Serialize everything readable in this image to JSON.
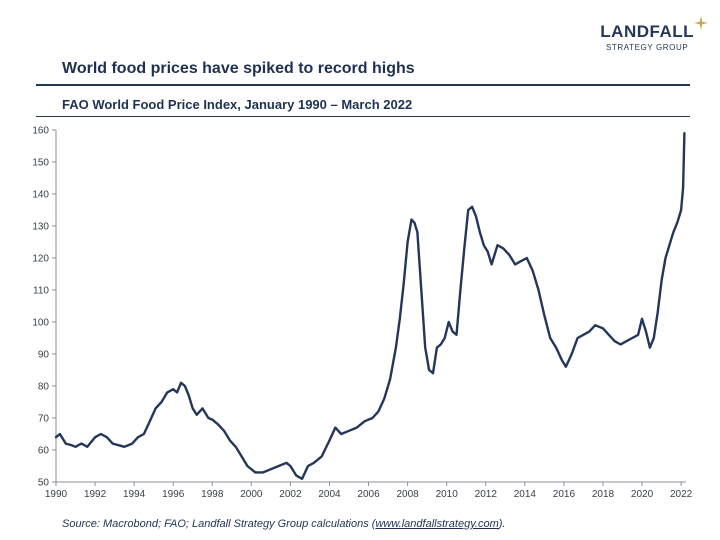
{
  "logo": {
    "brand": "LANDFALL",
    "sub": "STRATEGY GROUP"
  },
  "title": "World food prices have spiked to record highs",
  "chart_data": {
    "type": "line",
    "title": "FAO World Food Price Index, January 1990 – March 2022",
    "xlabel": "",
    "ylabel": "",
    "xlim": [
      1990,
      2022.25
    ],
    "ylim": [
      50,
      160
    ],
    "yticks": [
      50,
      60,
      70,
      80,
      90,
      100,
      110,
      120,
      130,
      140,
      150,
      160
    ],
    "xticks": [
      1990,
      1992,
      1994,
      1996,
      1998,
      2000,
      2002,
      2004,
      2006,
      2008,
      2010,
      2012,
      2014,
      2016,
      2018,
      2020,
      2022
    ],
    "grid": false,
    "series": [
      {
        "name": "FAO World Food Price Index",
        "color": "#24375a",
        "x": [
          1990.0,
          1990.2,
          1990.5,
          1990.8,
          1991.0,
          1991.3,
          1991.6,
          1992.0,
          1992.3,
          1992.6,
          1992.9,
          1993.2,
          1993.5,
          1993.9,
          1994.2,
          1994.5,
          1994.8,
          1995.1,
          1995.4,
          1995.7,
          1996.0,
          1996.2,
          1996.4,
          1996.6,
          1996.8,
          1997.0,
          1997.2,
          1997.5,
          1997.8,
          1998.0,
          1998.3,
          1998.6,
          1998.9,
          1999.2,
          1999.5,
          1999.8,
          2000.2,
          2000.6,
          2001.0,
          2001.4,
          2001.8,
          2002.0,
          2002.3,
          2002.6,
          2002.9,
          2003.2,
          2003.6,
          2004.0,
          2004.3,
          2004.6,
          2005.0,
          2005.4,
          2005.8,
          2006.2,
          2006.5,
          2006.8,
          2007.1,
          2007.4,
          2007.6,
          2007.8,
          2008.0,
          2008.2,
          2008.35,
          2008.5,
          2008.7,
          2008.9,
          2009.1,
          2009.3,
          2009.5,
          2009.7,
          2009.9,
          2010.1,
          2010.3,
          2010.5,
          2010.7,
          2010.9,
          2011.1,
          2011.3,
          2011.5,
          2011.7,
          2011.9,
          2012.1,
          2012.3,
          2012.6,
          2012.9,
          2013.2,
          2013.5,
          2013.8,
          2014.1,
          2014.4,
          2014.7,
          2015.0,
          2015.3,
          2015.6,
          2015.9,
          2016.1,
          2016.4,
          2016.7,
          2017.0,
          2017.3,
          2017.6,
          2018.0,
          2018.3,
          2018.6,
          2018.9,
          2019.2,
          2019.5,
          2019.8,
          2020.0,
          2020.2,
          2020.4,
          2020.6,
          2020.8,
          2021.0,
          2021.2,
          2021.4,
          2021.6,
          2021.8,
          2021.9,
          2022.0,
          2022.1,
          2022.17
        ],
        "values": [
          64,
          65,
          62,
          61.5,
          61,
          62,
          61,
          64,
          65,
          64,
          62,
          61.5,
          61,
          62,
          64,
          65,
          69,
          73,
          75,
          78,
          79,
          78,
          81,
          80,
          77,
          73,
          71,
          73,
          70,
          69.5,
          68,
          66,
          63,
          61,
          58,
          55,
          53,
          53,
          54,
          55,
          56,
          55,
          52,
          51,
          55,
          56,
          58,
          63,
          67,
          65,
          66,
          67,
          69,
          70,
          72,
          76,
          82,
          92,
          101,
          112,
          125,
          132,
          131,
          128,
          110,
          92,
          85,
          84,
          92,
          93,
          95,
          100,
          97,
          96,
          110,
          123,
          135,
          136,
          133,
          128,
          124,
          122,
          118,
          124,
          123,
          121,
          118,
          119,
          120,
          116,
          110,
          102,
          95,
          92,
          88,
          86,
          90,
          95,
          96,
          97,
          99,
          98,
          96,
          94,
          93,
          94,
          95,
          96,
          101,
          97,
          92,
          95,
          103,
          113,
          120,
          124,
          128,
          131,
          133,
          135,
          142,
          159
        ]
      }
    ]
  },
  "source": {
    "prefix": "Source: Macrobond; FAO; Landfall Strategy Group calculations (",
    "link": "www.landfallstrategy.com",
    "suffix": ")."
  }
}
